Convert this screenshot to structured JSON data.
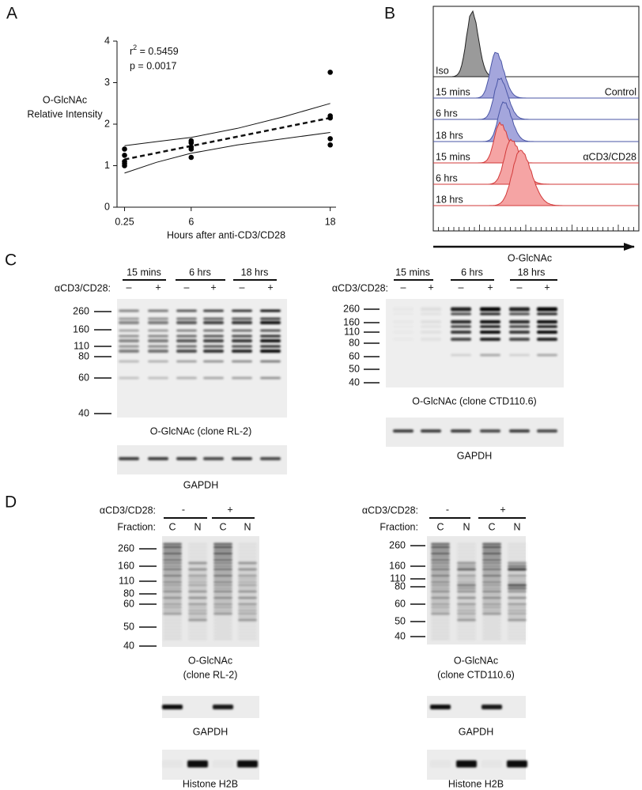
{
  "chart_data": {
    "type": "scatter",
    "panel_label": "A",
    "ylabel": [
      "O-GlcNAc",
      "Relative Intensity"
    ],
    "xlabel": "Hours after anti-CD3/CD28",
    "x": [
      0.25,
      0.25,
      0.25,
      0.25,
      0.25,
      6,
      6,
      6,
      6,
      6,
      18,
      18,
      18,
      18,
      18
    ],
    "y": [
      1.4,
      1.25,
      1.1,
      1.05,
      1.0,
      1.6,
      1.55,
      1.45,
      1.4,
      1.2,
      3.25,
      2.2,
      2.15,
      1.65,
      1.5
    ],
    "color": "#000000",
    "xlim": [
      -0.4,
      18.5
    ],
    "xticks": [
      0.25,
      6,
      18
    ],
    "ylim": [
      0,
      4
    ],
    "yticks": [
      0,
      1,
      2,
      3,
      4
    ],
    "fit": {
      "x": [
        0.25,
        18
      ],
      "y": [
        1.15,
        2.15
      ]
    },
    "ci_upper": {
      "x": [
        0.25,
        3,
        6,
        10,
        14,
        18
      ],
      "y": [
        1.48,
        1.58,
        1.68,
        1.9,
        2.18,
        2.5
      ]
    },
    "ci_lower": {
      "x": [
        0.25,
        3,
        6,
        10,
        14,
        18
      ],
      "y": [
        0.82,
        1.08,
        1.3,
        1.5,
        1.65,
        1.8
      ]
    },
    "r_squared": {
      "symbol": "r",
      "exponent": "2",
      "text": " = 0.5459"
    },
    "p_value": "p = 0.0017"
  },
  "panel_b": {
    "label": "B",
    "rows": [
      "Iso",
      "15 mins",
      "6 hrs",
      "18 hrs",
      "15 mins",
      "6 hrs",
      "18 hrs"
    ],
    "group_labels": [
      "Control",
      "αCD3/CD28"
    ],
    "axis_label": "O-GlcNAc"
  },
  "panel_c": {
    "label": "C",
    "blots": [
      {
        "treatment_label": "αCD3/CD28:",
        "times": [
          "15 mins",
          "6 hrs",
          "18 hrs"
        ],
        "signs": [
          "–",
          "+",
          "–",
          "+",
          "–",
          "+"
        ],
        "markers": [
          260,
          160,
          110,
          80,
          60,
          40
        ],
        "caption": "O-GlcNAc (clone RL-2)",
        "loading_caption": "GAPDH"
      },
      {
        "treatment_label": "αCD3/CD28:",
        "times": [
          "15 mins",
          "6 hrs",
          "18 hrs"
        ],
        "signs": [
          "–",
          "+",
          "–",
          "+",
          "–",
          "+"
        ],
        "markers": [
          260,
          160,
          110,
          80,
          60,
          50,
          40
        ],
        "caption": "O-GlcNAc (clone CTD110.6)",
        "loading_caption": "GAPDH"
      }
    ]
  },
  "panel_d": {
    "label": "D",
    "blots": [
      {
        "treatment_label": "αCD3/CD28:",
        "fraction_label": "Fraction:",
        "signs": [
          "-",
          "+"
        ],
        "fractions": [
          "C",
          "N",
          "C",
          "N"
        ],
        "markers": [
          260,
          160,
          110,
          80,
          60,
          50,
          40
        ],
        "caption": [
          "O-GlcNAc",
          "(clone RL-2)"
        ],
        "loading_captions": [
          "GAPDH",
          "Histone H2B"
        ]
      },
      {
        "treatment_label": "αCD3/CD28:",
        "fraction_label": "Fraction:",
        "signs": [
          "-",
          "+"
        ],
        "fractions": [
          "C",
          "N",
          "C",
          "N"
        ],
        "markers": [
          260,
          160,
          110,
          80,
          60,
          50,
          40
        ],
        "caption": [
          "O-GlcNAc",
          "(clone CTD110.6)"
        ],
        "loading_captions": [
          "GAPDH",
          "Histone H2B"
        ]
      }
    ]
  }
}
